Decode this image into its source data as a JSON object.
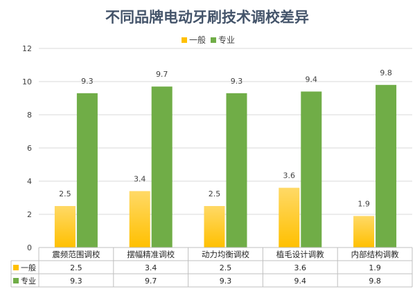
{
  "colors": {
    "general": "#ffc000",
    "pro": "#70ad47",
    "grid": "#d9d9d9",
    "axis": "#bfbfbf"
  },
  "chart_data": {
    "type": "bar",
    "title": "不同品牌电动牙刷技术调校差异",
    "categories": [
      "震频范围调校",
      "摆幅精准调校",
      "动力均衡调校",
      "植毛设计调教",
      "内部结构调教"
    ],
    "series": [
      {
        "name": "一般",
        "values": [
          2.5,
          3.4,
          2.5,
          3.6,
          1.9
        ]
      },
      {
        "name": "专业",
        "values": [
          9.3,
          9.7,
          9.3,
          9.4,
          9.8
        ]
      }
    ],
    "yticks": [
      0,
      2,
      4,
      6,
      8,
      10,
      12
    ],
    "ylim": [
      0,
      12
    ],
    "grid": true,
    "legend_position": "top",
    "data_table": true
  }
}
